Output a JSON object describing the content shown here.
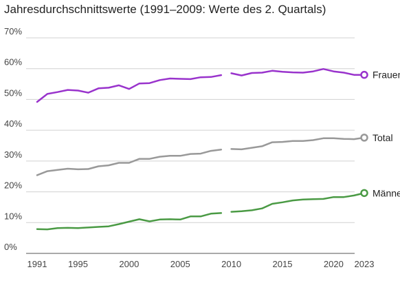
{
  "chart_data": {
    "type": "line",
    "title": "Jahresdurchschnittswerte (1991–2009: Werte des 2. Quartals)",
    "xlabel": "",
    "ylabel": "",
    "ylim": [
      0,
      70
    ],
    "xlim": [
      1991,
      2023
    ],
    "y_ticks": [
      "0%",
      "10%",
      "20%",
      "30%",
      "40%",
      "50%",
      "60%",
      "70%"
    ],
    "y_tick_values": [
      0,
      10,
      20,
      30,
      40,
      50,
      60,
      70
    ],
    "x_ticks": [
      "1991",
      "1995",
      "2000",
      "2005",
      "2010",
      "2015",
      "2020",
      "2023"
    ],
    "x_tick_values": [
      1991,
      1995,
      2000,
      2005,
      2010,
      2015,
      2020,
      2023
    ],
    "grid": "horizontal",
    "legend": "none (series labelled at the right end of each line)",
    "break_after_year": 2009,
    "x": [
      1991,
      1992,
      1993,
      1994,
      1995,
      1996,
      1997,
      1998,
      1999,
      2000,
      2001,
      2002,
      2003,
      2004,
      2005,
      2006,
      2007,
      2008,
      2009,
      2010,
      2011,
      2012,
      2013,
      2014,
      2015,
      2016,
      2017,
      2018,
      2019,
      2020,
      2021,
      2022,
      2023
    ],
    "series": [
      {
        "name": "Frauen",
        "color": "#9933cc",
        "values": [
          49.2,
          51.8,
          52.4,
          53.1,
          52.9,
          52.2,
          53.6,
          53.8,
          54.6,
          53.4,
          55.2,
          55.3,
          56.3,
          56.8,
          56.7,
          56.6,
          57.2,
          57.3,
          57.9,
          58.5,
          57.8,
          58.6,
          58.7,
          59.3,
          59.0,
          58.8,
          58.7,
          59.1,
          59.9,
          59.1,
          58.7,
          58.0,
          58.0
        ]
      },
      {
        "name": "Total",
        "color": "#999999",
        "values": [
          25.4,
          26.7,
          27.1,
          27.5,
          27.3,
          27.4,
          28.3,
          28.6,
          29.4,
          29.4,
          30.7,
          30.7,
          31.4,
          31.7,
          31.7,
          32.3,
          32.4,
          33.3,
          33.7,
          33.9,
          33.8,
          34.3,
          34.8,
          36.1,
          36.2,
          36.5,
          36.5,
          36.8,
          37.4,
          37.4,
          37.2,
          37.1,
          37.6
        ]
      },
      {
        "name": "Männer",
        "color": "#4a9a44",
        "values": [
          7.9,
          7.8,
          8.2,
          8.3,
          8.2,
          8.4,
          8.6,
          8.8,
          9.5,
          10.3,
          11.1,
          10.4,
          11.0,
          11.1,
          11.0,
          12.0,
          12.0,
          12.9,
          13.1,
          13.5,
          13.7,
          14.0,
          14.6,
          16.1,
          16.6,
          17.2,
          17.5,
          17.6,
          17.7,
          18.3,
          18.3,
          18.8,
          19.6
        ]
      }
    ]
  }
}
